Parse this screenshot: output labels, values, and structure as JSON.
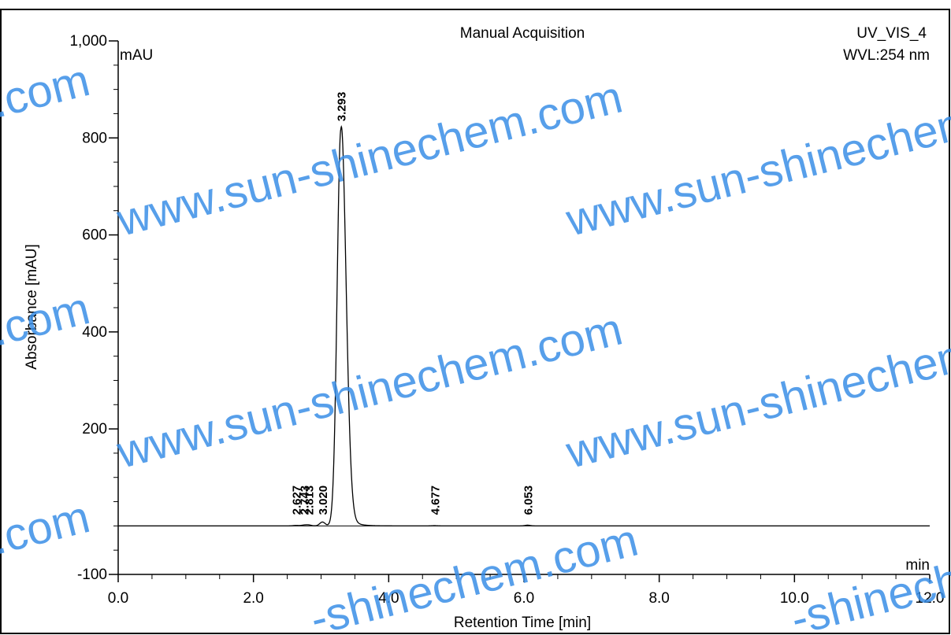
{
  "header": {
    "title": "Manual Acquisition",
    "channel": "UV_VIS_4",
    "wavelength": "WVL:254 nm",
    "unit_tag": "mAU",
    "x_unit_tag": "min"
  },
  "chart_data": {
    "type": "line",
    "title": "Manual Acquisition",
    "xlabel": "Retention Time [min]",
    "ylabel": "Absorbance [mAU]",
    "xlim": [
      0,
      12
    ],
    "ylim": [
      -100,
      1000
    ],
    "x_ticks": [
      {
        "value": 0,
        "label": "0.0"
      },
      {
        "value": 2,
        "label": "2.0"
      },
      {
        "value": 4,
        "label": "4.0"
      },
      {
        "value": 6,
        "label": "6.0"
      },
      {
        "value": 8,
        "label": "8.0"
      },
      {
        "value": 10,
        "label": "10.0"
      },
      {
        "value": 12,
        "label": "12.0"
      }
    ],
    "y_ticks": [
      {
        "value": -100,
        "label": "-100"
      },
      {
        "value": 200,
        "label": "200"
      },
      {
        "value": 400,
        "label": "400"
      },
      {
        "value": 600,
        "label": "600"
      },
      {
        "value": 800,
        "label": "800"
      },
      {
        "value": 1000,
        "label": "1,000"
      }
    ],
    "grid": false,
    "baseline": 0,
    "peaks": [
      {
        "label": "2.627",
        "rt": 2.627,
        "height": 1
      },
      {
        "label": "2.743",
        "rt": 2.743,
        "height": 1.5
      },
      {
        "label": "2.813",
        "rt": 2.813,
        "height": 2
      },
      {
        "label": "3.020",
        "rt": 3.02,
        "height": 8
      },
      {
        "label": "3.293",
        "rt": 3.293,
        "height": 818
      },
      {
        "label": "4.677",
        "rt": 4.677,
        "height": 0.5
      },
      {
        "label": "6.053",
        "rt": 6.053,
        "height": 1.5
      }
    ]
  },
  "watermark": {
    "text": "www.sun-shinechem.com",
    "fragment_com": ".com",
    "fragment_tail": "-shinechem.com",
    "color": "#3a8ee6"
  }
}
